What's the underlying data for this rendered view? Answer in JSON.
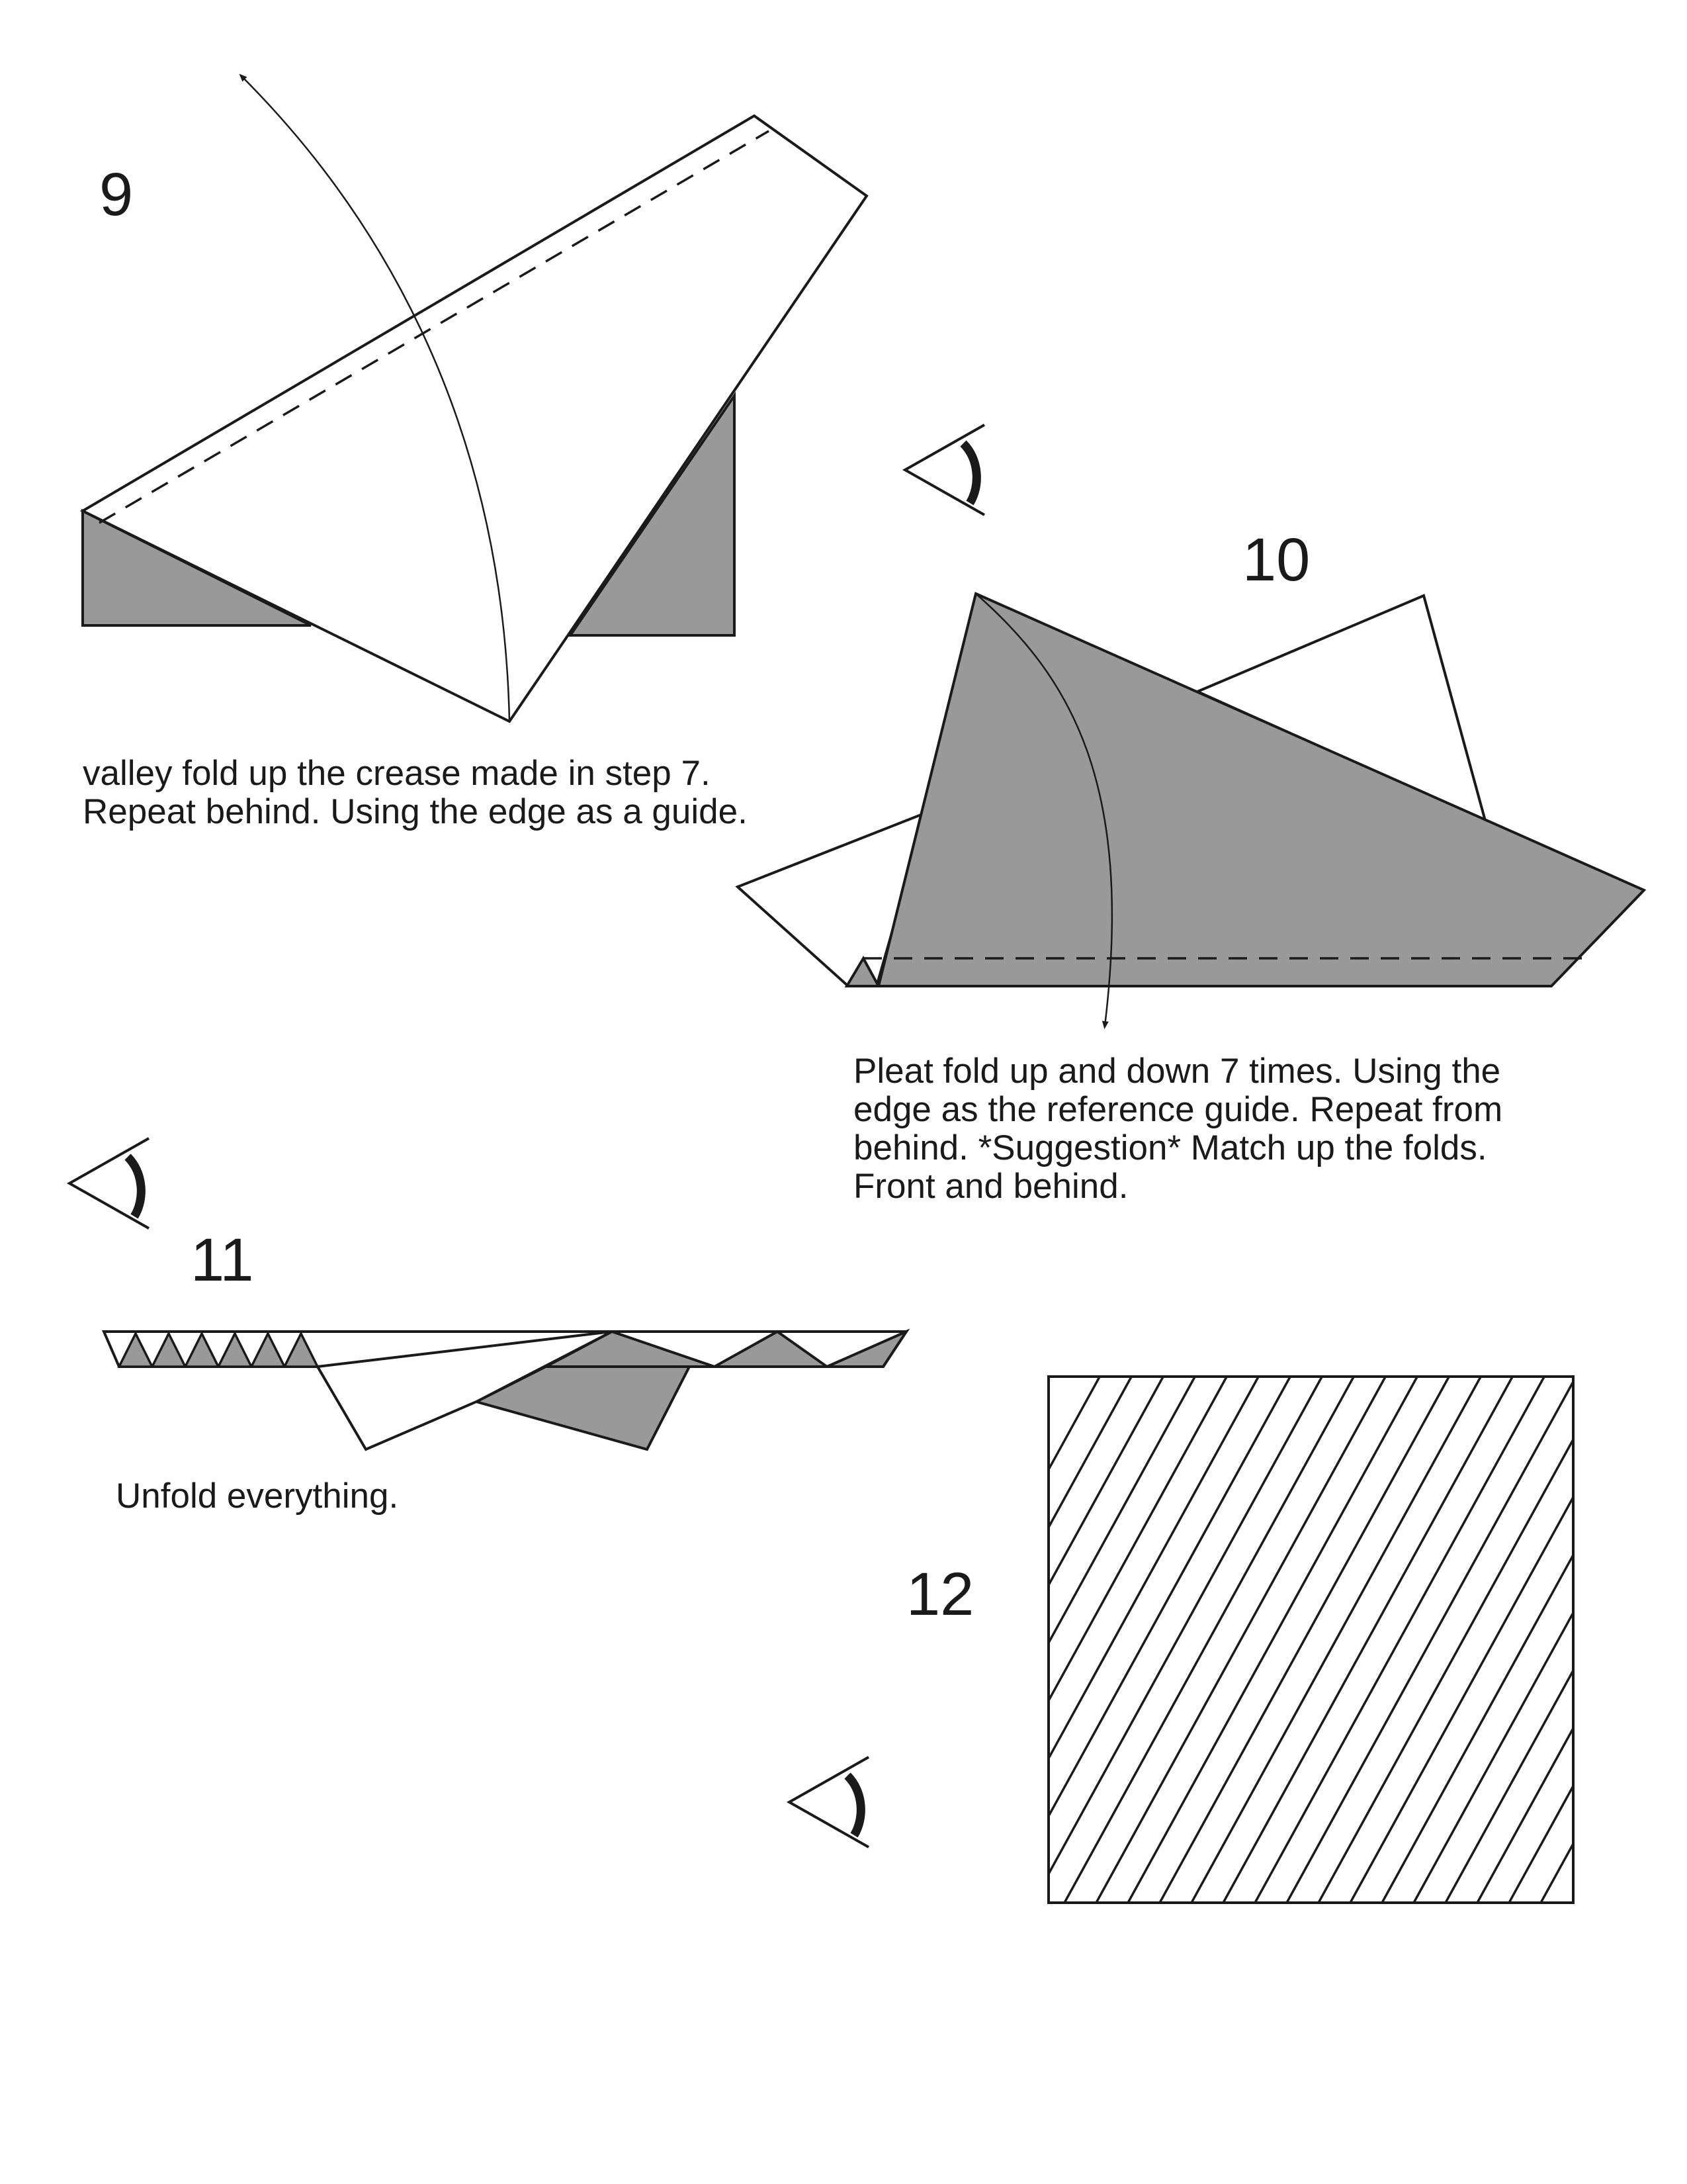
{
  "colors": {
    "paper": "#ffffff",
    "ink": "#1a1a1a",
    "shade": "#999999"
  },
  "steps": [
    {
      "number": "9",
      "caption": "valley fold up the crease made in step 7.\nRepeat behind.  Using the edge as a guide."
    },
    {
      "number": "10",
      "caption": "Pleat fold up and down 7 times.  Using the\nedge as the reference guide.  Repeat from\nbehind.  *Suggestion*  Match up the folds.\nFront and behind."
    },
    {
      "number": "11",
      "caption": "Unfold everything."
    },
    {
      "number": "12",
      "caption": ""
    }
  ],
  "icons": [
    "turn-over-eye-icon",
    "turn-over-eye-icon",
    "turn-over-eye-icon"
  ]
}
